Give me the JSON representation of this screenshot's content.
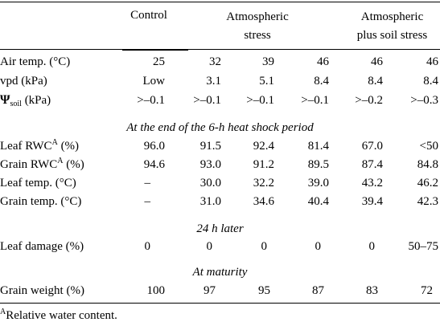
{
  "table": {
    "col_headers": [
      {
        "label": "Control"
      },
      {
        "label": "Atmospheric\nstress"
      },
      {
        "label": "Atmospheric\nplus soil stress"
      }
    ],
    "conditions": [
      {
        "label_pre": "Air temp. (",
        "label_post": "C)",
        "degree": "°",
        "values": [
          "25",
          "32",
          "39",
          "46",
          "46",
          "46"
        ]
      },
      {
        "label": "vpd (kPa)",
        "values": [
          "Low",
          "3.1",
          "5.1",
          "8.4",
          "8.4",
          "8.4"
        ]
      },
      {
        "psi": "Ψ",
        "sub": "soil",
        "label_post": " (kPa)",
        "values": [
          ">–0.1",
          ">–0.1",
          ">–0.1",
          ">–0.1",
          ">–0.2",
          ">–0.3"
        ]
      }
    ],
    "section1": {
      "title": "At the end of the 6-h heat shock period",
      "rows": [
        {
          "label_pre": "Leaf RWC",
          "sup": "A",
          "label_post": " (%)",
          "values": [
            "96.0",
            "91.5",
            "92.4",
            "81.4",
            "67.0",
            "<50"
          ]
        },
        {
          "label_pre": "Grain RWC",
          "sup": "A",
          "label_post": " (%)",
          "values": [
            "94.6",
            "93.0",
            "91.2",
            "89.5",
            "87.4",
            "84.8"
          ]
        },
        {
          "label_pre": "Leaf temp. (",
          "degree": "°",
          "label_post": "C)",
          "values": [
            "–",
            "30.0",
            "32.2",
            "39.0",
            "43.2",
            "46.2"
          ]
        },
        {
          "label_pre": "Grain temp. (",
          "degree": "°",
          "label_post": "C)",
          "values": [
            "–",
            "31.0",
            "34.6",
            "40.4",
            "39.4",
            "42.3"
          ]
        }
      ]
    },
    "section2": {
      "title": "24 h later",
      "rows": [
        {
          "label": "Leaf damage (%)",
          "values": [
            "0",
            "0",
            "0",
            "0",
            "0",
            "50–75"
          ]
        }
      ]
    },
    "section3": {
      "title": "At maturity",
      "rows": [
        {
          "label": "Grain weight (%)",
          "values": [
            "100",
            "97",
            "95",
            "87",
            "83",
            "72"
          ]
        }
      ]
    }
  },
  "footnote": {
    "marker": "A",
    "text": "Relative water content."
  }
}
